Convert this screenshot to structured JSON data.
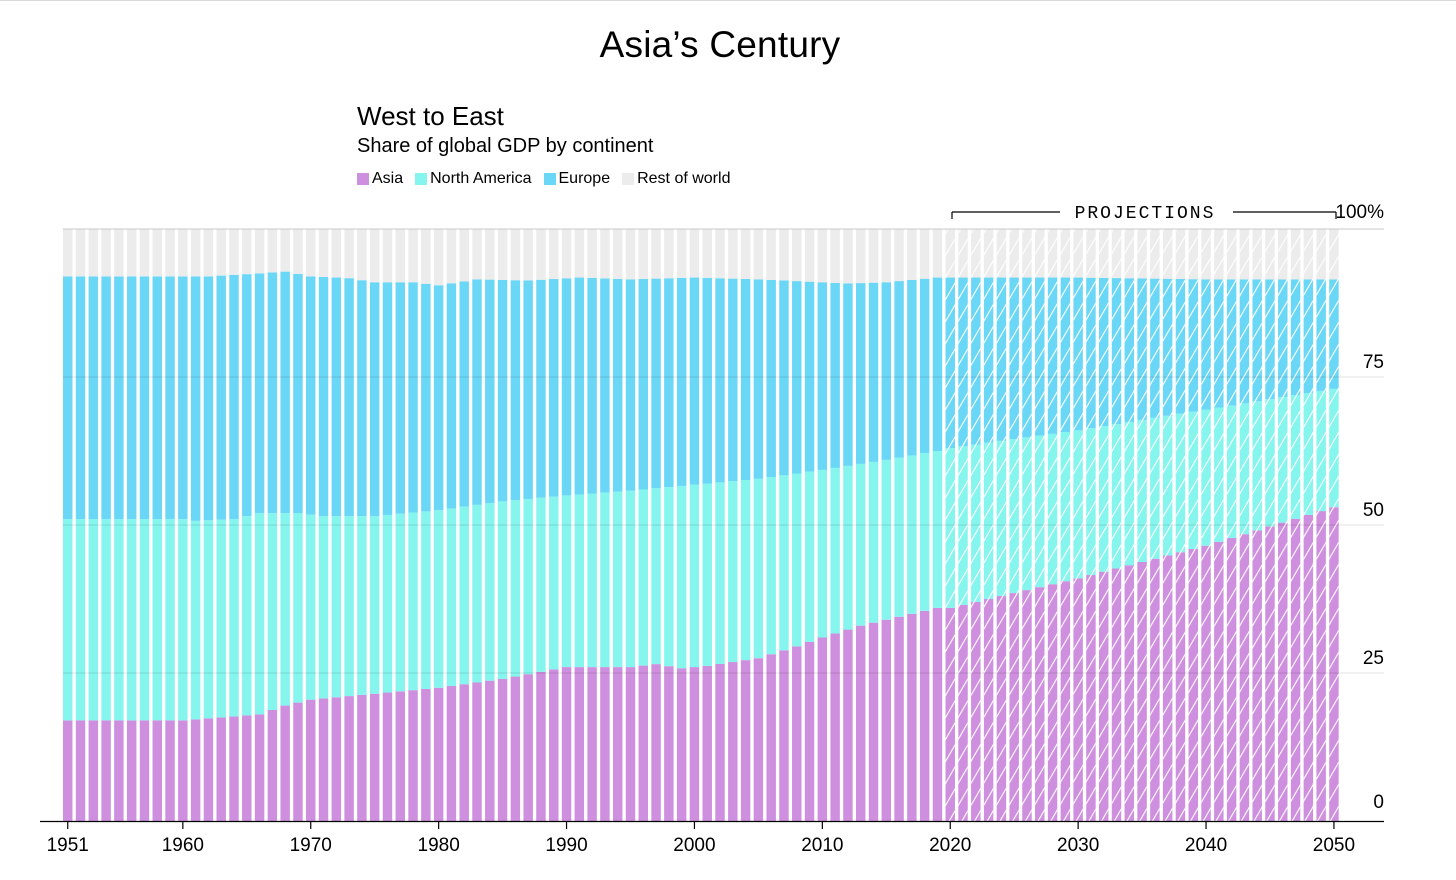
{
  "header": {
    "title": "Asia’s Century",
    "subtitle": "West to East",
    "description": "Share of global GDP by continent"
  },
  "legend": [
    {
      "label": "Asia",
      "color": "#cf8fdf"
    },
    {
      "label": "North America",
      "color": "#86f5ee"
    },
    {
      "label": "Europe",
      "color": "#6ad7f7"
    },
    {
      "label": "Rest of world",
      "color": "#ececec"
    }
  ],
  "projections_label": "PROJECTIONS",
  "chart_data": {
    "type": "bar",
    "stacked": true,
    "title": "West to East",
    "subtitle": "Share of global GDP by continent",
    "x_start": 1951,
    "x_end": 2050,
    "projection_start": 2020,
    "ylim": [
      0,
      100
    ],
    "ytick_labels": [
      "0",
      "25",
      "50",
      "75",
      "100%"
    ],
    "xtick_labels": [
      "1951",
      "1960",
      "1970",
      "1980",
      "1990",
      "2000",
      "2010",
      "2020",
      "2030",
      "2040",
      "2050"
    ],
    "grid": true,
    "legend_position": "top-left",
    "series": [
      {
        "name": "Asia",
        "color": "#cf8fdf",
        "anchors": [
          [
            1951,
            17
          ],
          [
            1960,
            17
          ],
          [
            1963,
            17.5
          ],
          [
            1966,
            18
          ],
          [
            1968,
            19.5
          ],
          [
            1970,
            20.5
          ],
          [
            1975,
            21.5
          ],
          [
            1980,
            22.5
          ],
          [
            1985,
            24
          ],
          [
            1990,
            26
          ],
          [
            1995,
            26
          ],
          [
            1997,
            26.5
          ],
          [
            1999,
            25.8
          ],
          [
            2001,
            26.2
          ],
          [
            2005,
            27.5
          ],
          [
            2008,
            29.5
          ],
          [
            2010,
            31
          ],
          [
            2013,
            33
          ],
          [
            2016,
            34.5
          ],
          [
            2019,
            36
          ],
          [
            2020,
            36
          ],
          [
            2030,
            41
          ],
          [
            2040,
            46.5
          ],
          [
            2050,
            53
          ]
        ]
      },
      {
        "name": "North America",
        "color": "#86f5ee",
        "anchors": [
          [
            1951,
            51
          ],
          [
            1960,
            51
          ],
          [
            1961,
            50.7
          ],
          [
            1964,
            51
          ],
          [
            1966,
            52
          ],
          [
            1969,
            52
          ],
          [
            1971,
            51.5
          ],
          [
            1975,
            51.5
          ],
          [
            1980,
            52.5
          ],
          [
            1985,
            54
          ],
          [
            1990,
            55
          ],
          [
            1995,
            55.8
          ],
          [
            2000,
            56.8
          ],
          [
            2005,
            57.8
          ],
          [
            2010,
            59.3
          ],
          [
            2015,
            61
          ],
          [
            2019,
            62.5
          ],
          [
            2020,
            63
          ],
          [
            2030,
            66
          ],
          [
            2040,
            69.5
          ],
          [
            2050,
            73
          ]
        ]
      },
      {
        "name": "Europe",
        "color": "#6ad7f7",
        "anchors": [
          [
            1951,
            92
          ],
          [
            1962,
            92
          ],
          [
            1966,
            92.5
          ],
          [
            1968,
            92.8
          ],
          [
            1970,
            92
          ],
          [
            1973,
            91.7
          ],
          [
            1975,
            91
          ],
          [
            1978,
            91
          ],
          [
            1980,
            90.5
          ],
          [
            1983,
            91.5
          ],
          [
            1987,
            91.3
          ],
          [
            1991,
            91.8
          ],
          [
            1995,
            91.5
          ],
          [
            2000,
            91.8
          ],
          [
            2005,
            91.5
          ],
          [
            2008,
            91.2
          ],
          [
            2012,
            90.8
          ],
          [
            2015,
            91
          ],
          [
            2019,
            91.8
          ],
          [
            2030,
            91.8
          ],
          [
            2040,
            91.5
          ],
          [
            2050,
            91.5
          ]
        ]
      },
      {
        "name": "Rest of world",
        "color": "#ececec",
        "anchors": [
          [
            1951,
            100
          ],
          [
            2050,
            100
          ]
        ]
      }
    ]
  }
}
